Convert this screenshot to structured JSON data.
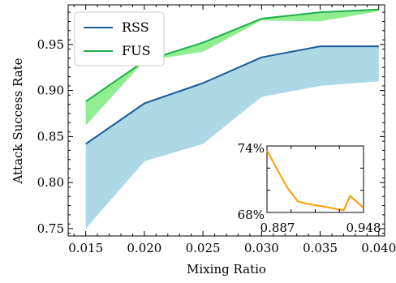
{
  "chart_data": [
    {
      "type": "line",
      "title": "",
      "xlabel": "Mixing Ratio",
      "ylabel": "Attack Success Rate",
      "xlim": [
        0.0135,
        0.0405
      ],
      "ylim": [
        0.742,
        0.993
      ],
      "x": [
        0.015,
        0.02,
        0.025,
        0.03,
        0.035,
        0.04
      ],
      "x_tick_labels": [
        "0.015",
        "0.020",
        "0.025",
        "0.030",
        "0.035",
        "0.040"
      ],
      "y_ticks": [
        0.75,
        0.8,
        0.85,
        0.9,
        0.95
      ],
      "y_tick_labels": [
        "0.75",
        "0.80",
        "0.85",
        "0.90",
        "0.95"
      ],
      "grid": false,
      "legend_position": "top-left",
      "series": [
        {
          "name": "RSS",
          "color": "#1a5a96",
          "band_color": "#add8e6",
          "values": [
            0.842,
            0.886,
            0.908,
            0.936,
            0.948,
            0.948
          ],
          "band_lower": [
            0.75,
            0.823,
            0.842,
            0.893,
            0.905,
            0.91
          ],
          "band_upper": [
            0.842,
            0.886,
            0.908,
            0.936,
            0.948,
            0.948
          ]
        },
        {
          "name": "FUS",
          "color": "#1db04b",
          "band_color": "#90ee90",
          "values": [
            0.888,
            0.932,
            0.952,
            0.978,
            0.985,
            0.988
          ],
          "band_lower": [
            0.862,
            0.932,
            0.942,
            0.976,
            0.975,
            0.986
          ],
          "band_upper": [
            0.888,
            0.932,
            0.952,
            0.978,
            0.985,
            0.988
          ]
        }
      ]
    },
    {
      "type": "line",
      "title": "",
      "xlabel": "",
      "ylabel": "",
      "xlim": [
        0.887,
        0.948
      ],
      "ylim": [
        68,
        74
      ],
      "x_tick_labels": [
        "0.887",
        "0.948"
      ],
      "y_tick_labels": [
        "68%",
        "74%"
      ],
      "series": [
        {
          "color": "#ff9900",
          "x": [
            0.887,
            0.893,
            0.9,
            0.9065,
            0.912,
            0.924,
            0.9355,
            0.9395,
            0.948
          ],
          "values": [
            73.6,
            72.0,
            70.2,
            69.0,
            68.8,
            68.5,
            68.2,
            69.5,
            68.4
          ]
        }
      ]
    }
  ]
}
